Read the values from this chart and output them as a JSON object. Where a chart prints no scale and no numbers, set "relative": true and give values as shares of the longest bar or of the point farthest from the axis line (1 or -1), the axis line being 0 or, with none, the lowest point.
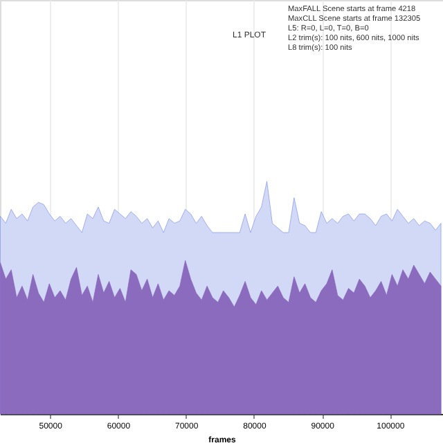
{
  "chart_data": {
    "type": "area",
    "title": "L1 PLOT",
    "xlabel": "frames",
    "relative": true,
    "annotations": [
      "MaxFALL Scene starts at frame 4218",
      "MaxCLL Scene starts at frame 132305",
      "L5: R=0, L=0, T=0, B=0",
      "L2 trim(s): 100 nits, 600 nits, 1000 nits",
      "L8 trim(s): 100 nits"
    ],
    "x": [
      42700,
      43500,
      44300,
      45100,
      45900,
      46700,
      47500,
      48300,
      49100,
      49900,
      50700,
      51500,
      52300,
      53100,
      53900,
      54700,
      55500,
      56300,
      57100,
      57900,
      58700,
      59500,
      60300,
      61100,
      61900,
      62700,
      63500,
      64300,
      65100,
      65900,
      66700,
      67500,
      68300,
      69100,
      69900,
      70700,
      71500,
      72300,
      73100,
      73900,
      74700,
      75500,
      76300,
      77100,
      77900,
      78700,
      79500,
      80300,
      81100,
      81900,
      82700,
      83500,
      84300,
      85100,
      85900,
      86700,
      87500,
      88300,
      89100,
      89900,
      90700,
      91500,
      92300,
      93100,
      93900,
      94700,
      95500,
      96300,
      97100,
      97900,
      98700,
      99500,
      100300,
      101100,
      101900,
      102700,
      103500,
      104300,
      105100,
      105900,
      106700,
      107500
    ],
    "xlim": [
      42650,
      107800
    ],
    "xticks": [
      50000,
      60000,
      70000,
      80000,
      90000,
      100000
    ],
    "grid": "x",
    "legend": false,
    "series": [
      {
        "color": "#7f95e6",
        "values": [
          0.85,
          0.82,
          0.88,
          0.84,
          0.86,
          0.83,
          0.89,
          0.91,
          0.9,
          0.86,
          0.83,
          0.85,
          0.82,
          0.84,
          0.81,
          0.78,
          0.86,
          0.84,
          0.89,
          0.83,
          0.82,
          0.88,
          0.86,
          0.84,
          0.87,
          0.85,
          0.82,
          0.84,
          0.8,
          0.83,
          0.78,
          0.84,
          0.82,
          0.83,
          0.88,
          0.86,
          0.82,
          0.85,
          0.81,
          0.78,
          0.78,
          0.78,
          0.78,
          0.78,
          0.78,
          0.86,
          0.78,
          0.85,
          0.89,
          1.0,
          0.82,
          0.8,
          0.78,
          0.78,
          0.93,
          0.82,
          0.81,
          0.78,
          0.78,
          0.87,
          0.82,
          0.84,
          0.82,
          0.85,
          0.86,
          0.83,
          0.86,
          0.86,
          0.84,
          0.81,
          0.85,
          0.86,
          0.83,
          0.88,
          0.85,
          0.82,
          0.84,
          0.81,
          0.83,
          0.82,
          0.79,
          0.82
        ]
      },
      {
        "color": "#8a63bd",
        "values": [
          0.65,
          0.58,
          0.62,
          0.5,
          0.55,
          0.49,
          0.6,
          0.52,
          0.48,
          0.56,
          0.5,
          0.53,
          0.49,
          0.58,
          0.63,
          0.51,
          0.55,
          0.48,
          0.6,
          0.52,
          0.57,
          0.5,
          0.54,
          0.48,
          0.62,
          0.6,
          0.53,
          0.58,
          0.5,
          0.56,
          0.49,
          0.53,
          0.51,
          0.55,
          0.66,
          0.58,
          0.52,
          0.49,
          0.55,
          0.5,
          0.48,
          0.53,
          0.5,
          0.46,
          0.51,
          0.57,
          0.5,
          0.47,
          0.53,
          0.49,
          0.52,
          0.55,
          0.5,
          0.48,
          0.59,
          0.52,
          0.56,
          0.5,
          0.48,
          0.53,
          0.56,
          0.62,
          0.51,
          0.49,
          0.54,
          0.52,
          0.58,
          0.55,
          0.5,
          0.53,
          0.57,
          0.51,
          0.6,
          0.55,
          0.62,
          0.58,
          0.64,
          0.6,
          0.56,
          0.61,
          0.58,
          0.55
        ]
      }
    ]
  }
}
